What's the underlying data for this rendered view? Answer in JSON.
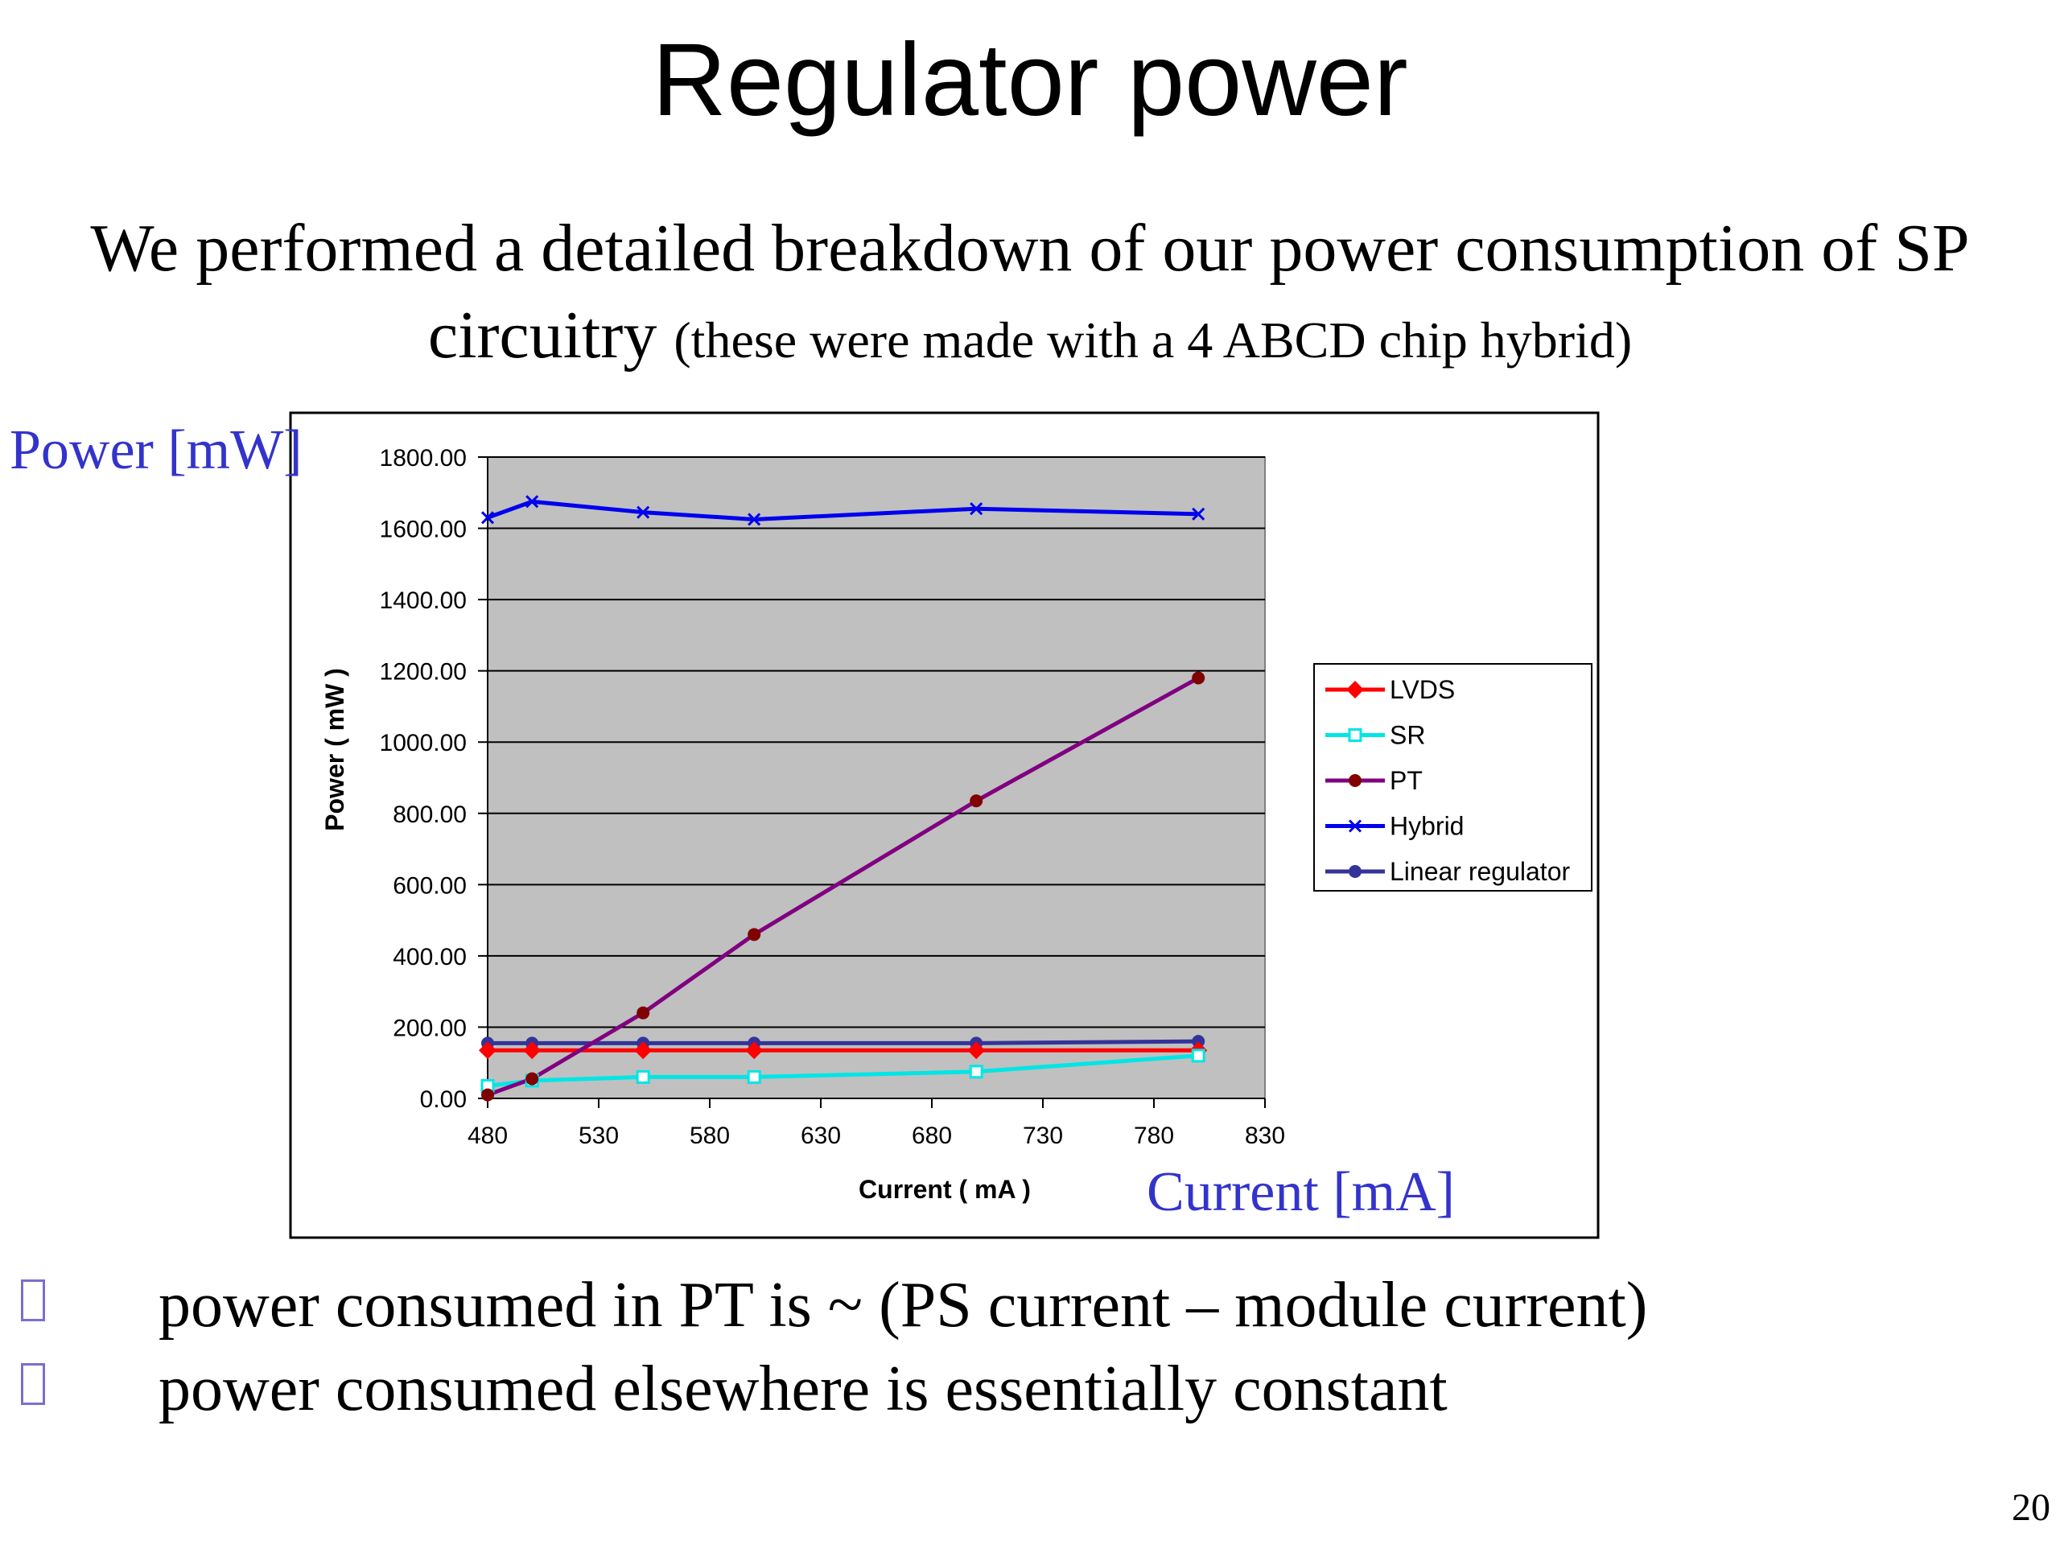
{
  "slide": {
    "title": "Regulator power",
    "subtitle_main_line1": "We performed a detailed breakdown of our power consumption of SP",
    "subtitle_main_line2": "circuitry",
    "subtitle_paren": "(these were made with a 4 ABCD chip hybrid)",
    "annotation_y": "Power [mW]",
    "annotation_x": "Current [mA]",
    "bullets": [
      "power consumed in PT is  ~ (PS current – module current)",
      "power consumed elsewhere is essentially constant"
    ],
    "page_number": "20"
  },
  "chart_data": {
    "type": "line",
    "xlabel": "Current ( mA )",
    "ylabel": "Power ( mW )",
    "xlim": [
      480,
      830
    ],
    "ylim": [
      0,
      1800
    ],
    "x_ticks": [
      "480",
      "530",
      "580",
      "630",
      "680",
      "730",
      "780",
      "830"
    ],
    "y_ticks": [
      "0.00",
      "200.00",
      "400.00",
      "600.00",
      "800.00",
      "1000.00",
      "1200.00",
      "1400.00",
      "1600.00",
      "1800.00"
    ],
    "grid": true,
    "legend_position": "right",
    "x": [
      480,
      500,
      550,
      600,
      700,
      800
    ],
    "series": [
      {
        "name": "LVDS",
        "color": "#ff0000",
        "marker": "diamond",
        "values": [
          135,
          135,
          135,
          135,
          135,
          135
        ]
      },
      {
        "name": "SR",
        "color": "#00e5e5",
        "marker": "square",
        "values": [
          35,
          50,
          60,
          60,
          75,
          120
        ]
      },
      {
        "name": "PT",
        "color": "#800080",
        "marker_color": "#800000",
        "marker": "circle",
        "values": [
          10,
          55,
          240,
          460,
          835,
          1180
        ]
      },
      {
        "name": "Hybrid",
        "color": "#0000ee",
        "marker": "x",
        "values": [
          1630,
          1675,
          1645,
          1625,
          1655,
          1640
        ]
      },
      {
        "name": "Linear regulator",
        "color": "#333399",
        "marker_color": "#333399",
        "marker": "circle",
        "values": [
          155,
          155,
          155,
          155,
          155,
          160
        ]
      }
    ]
  }
}
